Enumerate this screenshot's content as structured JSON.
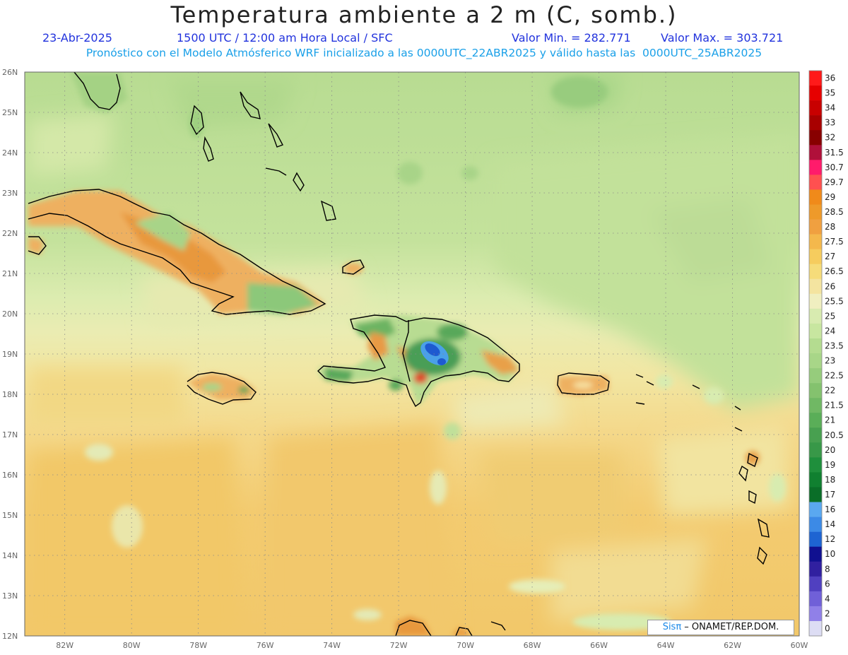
{
  "header": {
    "title": "Temperatura ambiente a 2 m (C, somb.)",
    "date": "23-Abr-2025",
    "time": "1500 UTC / 12:00 am Hora Local / SFC",
    "min": "Valor Min. = 282.771",
    "max": "Valor Max. = 303.721",
    "forecast": "Pronóstico con el Modelo Atmósferico WRF inicializado a las 0000UTC_22ABR2025 y válido hasta las  0000UTC_25ABR2025"
  },
  "map": {
    "lat_labels": [
      "26N",
      "25N",
      "24N",
      "23N",
      "22N",
      "21N",
      "20N",
      "19N",
      "18N",
      "17N",
      "16N",
      "15N",
      "14N",
      "13N",
      "12N"
    ],
    "lon_labels": [
      "82W",
      "80W",
      "78W",
      "76W",
      "74W",
      "72W",
      "70W",
      "68W",
      "66W",
      "64W",
      "62W",
      "60W"
    ],
    "lat_range": [
      12,
      26
    ],
    "lon_range": [
      -83.2,
      -60
    ],
    "grid": "dotted"
  },
  "legend": {
    "levels": [
      "36",
      "35",
      "34",
      "33",
      "32",
      "31.5",
      "30.7",
      "29.7",
      "29",
      "28.5",
      "28",
      "27.5",
      "27",
      "26.5",
      "26",
      "25.5",
      "25",
      "24",
      "23.5",
      "23",
      "22.5",
      "22",
      "21.5",
      "21",
      "20.5",
      "20",
      "19",
      "18",
      "17",
      "16",
      "14",
      "12",
      "10",
      "8",
      "6",
      "4",
      "2",
      "0"
    ],
    "colors": [
      "#ff1a1a",
      "#e60000",
      "#c80000",
      "#a80000",
      "#880000",
      "#b0103a",
      "#ff1b6b",
      "#ff5050",
      "#f08a1a",
      "#ee9a2a",
      "#f0a040",
      "#f4b84c",
      "#f6cc5e",
      "#f6dc7a",
      "#f4e4a0",
      "#f0efc0",
      "#d8ebb0",
      "#c8e6a0",
      "#b4dc90",
      "#a8d688",
      "#96cc7c",
      "#84c26e",
      "#70b864",
      "#5aae58",
      "#48a050",
      "#389848",
      "#1f8f3c",
      "#108030",
      "#0a6e28",
      "#5aa8f0",
      "#3c8ae6",
      "#1e64d2",
      "#101090",
      "#3020a0",
      "#5040c0",
      "#7060d8",
      "#9080e8",
      "#ddddf4"
    ]
  },
  "credit": {
    "brand": "Sisπ",
    "org": " – ONAMET/REP.DOM."
  }
}
